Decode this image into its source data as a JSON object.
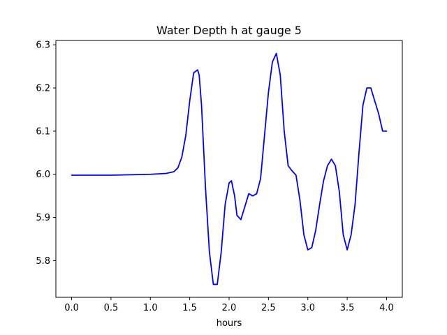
{
  "chart_data": {
    "type": "line",
    "title": "Water Depth h at gauge 5",
    "xlabel": "hours",
    "ylabel": "",
    "xlim": [
      -0.2,
      4.2
    ],
    "ylim": [
      5.715,
      6.31
    ],
    "xticks": [
      0.0,
      0.5,
      1.0,
      1.5,
      2.0,
      2.5,
      3.0,
      3.5,
      4.0
    ],
    "xtick_labels": [
      "0.0",
      "0.5",
      "1.0",
      "1.5",
      "2.0",
      "2.5",
      "3.0",
      "3.5",
      "4.0"
    ],
    "yticks": [
      5.8,
      5.9,
      6.0,
      6.1,
      6.2,
      6.3
    ],
    "ytick_labels": [
      "5.8",
      "5.9",
      "6.0",
      "6.1",
      "6.2",
      "6.3"
    ],
    "grid": false,
    "series": [
      {
        "color": "#0000ff",
        "x": [
          0.0,
          0.5,
          1.0,
          1.2,
          1.3,
          1.35,
          1.4,
          1.45,
          1.5,
          1.55,
          1.6,
          1.62,
          1.65,
          1.7,
          1.75,
          1.8,
          1.85,
          1.9,
          1.95,
          2.0,
          2.03,
          2.07,
          2.1,
          2.15,
          2.2,
          2.25,
          2.3,
          2.35,
          2.4,
          2.45,
          2.5,
          2.55,
          2.6,
          2.65,
          2.7,
          2.75,
          2.8,
          2.85,
          2.9,
          2.95,
          3.0,
          3.05,
          3.1,
          3.15,
          3.2,
          3.25,
          3.3,
          3.35,
          3.4,
          3.45,
          3.5,
          3.55,
          3.6,
          3.65,
          3.7,
          3.75,
          3.8,
          3.85,
          3.9,
          3.95,
          4.0
        ],
        "y": [
          5.998,
          5.998,
          6.0,
          6.002,
          6.006,
          6.015,
          6.04,
          6.09,
          6.17,
          6.235,
          6.242,
          6.23,
          6.16,
          5.97,
          5.82,
          5.745,
          5.745,
          5.82,
          5.93,
          5.98,
          5.985,
          5.95,
          5.905,
          5.895,
          5.925,
          5.955,
          5.95,
          5.955,
          5.99,
          6.09,
          6.19,
          6.26,
          6.28,
          6.23,
          6.1,
          6.02,
          6.008,
          5.998,
          5.94,
          5.86,
          5.825,
          5.83,
          5.87,
          5.93,
          5.985,
          6.02,
          6.035,
          6.02,
          5.96,
          5.86,
          5.825,
          5.86,
          5.93,
          6.05,
          6.16,
          6.2,
          6.2,
          6.17,
          6.14,
          6.1,
          6.1
        ]
      }
    ]
  }
}
